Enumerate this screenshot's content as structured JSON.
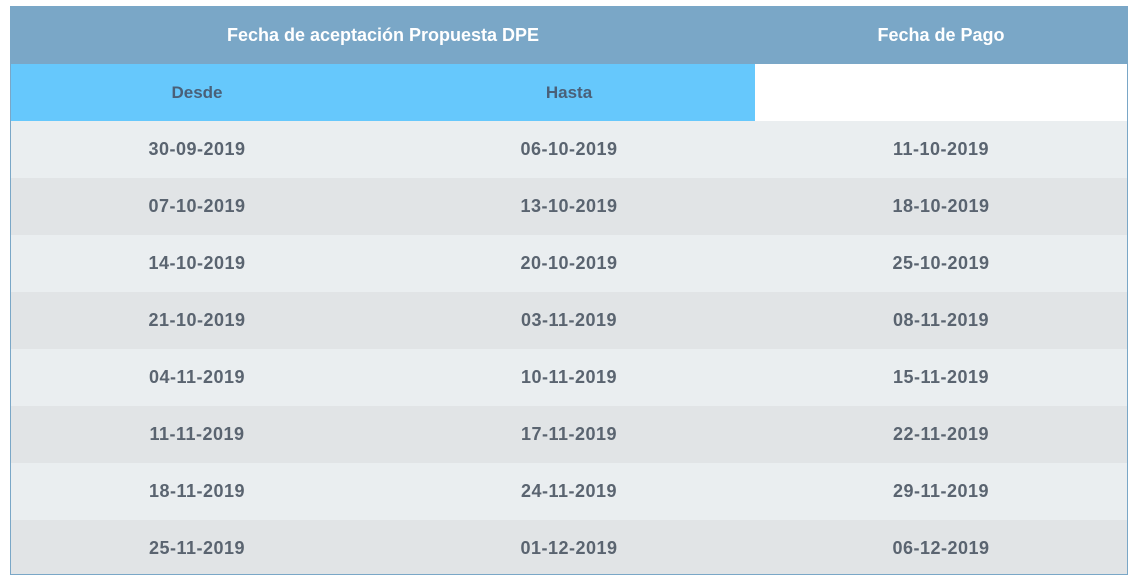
{
  "header": {
    "group_label": "Fecha de aceptación Propuesta DPE",
    "pay_label": "Fecha de Pago",
    "from_label": "Desde",
    "to_label": "Hasta"
  },
  "rows": [
    {
      "desde": "30-09-2019",
      "hasta": "06-10-2019",
      "pago": "11-10-2019"
    },
    {
      "desde": "07-10-2019",
      "hasta": "13-10-2019",
      "pago": "18-10-2019"
    },
    {
      "desde": "14-10-2019",
      "hasta": "20-10-2019",
      "pago": "25-10-2019"
    },
    {
      "desde": "21-10-2019",
      "hasta": "03-11-2019",
      "pago": "08-11-2019"
    },
    {
      "desde": "04-11-2019",
      "hasta": "10-11-2019",
      "pago": "15-11-2019"
    },
    {
      "desde": "11-11-2019",
      "hasta": "17-11-2019",
      "pago": "22-11-2019"
    },
    {
      "desde": "18-11-2019",
      "hasta": "24-11-2019",
      "pago": "29-11-2019"
    },
    {
      "desde": "25-11-2019",
      "hasta": "01-12-2019",
      "pago": "06-12-2019"
    }
  ],
  "colors": {
    "header_dark": "#7aa7c7",
    "header_light": "#66c8fc",
    "row_odd": "#eaeef0",
    "row_even": "#e1e4e6"
  }
}
